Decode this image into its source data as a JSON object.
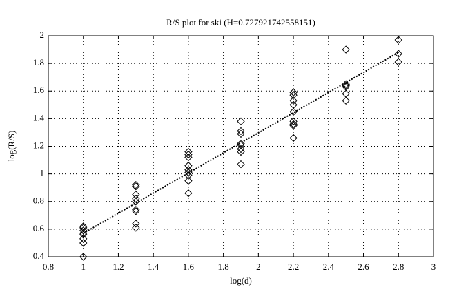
{
  "chart_data": {
    "type": "scatter",
    "title": "R/S plot for ski (H=0.727921742558151)",
    "x_label": "log(d)",
    "y_label": "log(R/S)",
    "xlim": [
      0.8,
      3
    ],
    "xticks": [
      0.8,
      1,
      1.2,
      1.4,
      1.6,
      1.8,
      2,
      2.2,
      2.4,
      2.6,
      2.8,
      3
    ],
    "ylim": [
      0.4,
      2
    ],
    "yticks": [
      0.4,
      0.6,
      0.8,
      1,
      1.2,
      1.4,
      1.6,
      1.8,
      2
    ],
    "grid": true,
    "series": [
      {
        "type": "scatter",
        "marker": "diamond",
        "color": "#000000",
        "x": [
          1,
          1,
          1,
          1,
          1,
          1,
          1,
          1,
          1.3,
          1.3,
          1.3,
          1.3,
          1.3,
          1.3,
          1.3,
          1.3,
          1.3,
          1.6,
          1.6,
          1.6,
          1.6,
          1.6,
          1.6,
          1.6,
          1.6,
          1.6,
          1.9,
          1.9,
          1.9,
          1.9,
          1.9,
          1.9,
          1.9,
          1.9,
          2.2,
          2.2,
          2.2,
          2.2,
          2.2,
          2.2,
          2.2,
          2.2,
          2.2,
          2.5,
          2.5,
          2.5,
          2.5,
          2.5,
          2.5,
          2.8,
          2.8,
          2.8
        ],
        "values": [
          0.62,
          0.61,
          0.59,
          0.57,
          0.56,
          0.53,
          0.5,
          0.4,
          0.92,
          0.91,
          0.85,
          0.82,
          0.8,
          0.74,
          0.73,
          0.64,
          0.61,
          1.16,
          1.14,
          1.12,
          1.06,
          1.03,
          1.01,
          0.99,
          0.95,
          0.86,
          1.38,
          1.31,
          1.29,
          1.22,
          1.21,
          1.18,
          1.16,
          1.07,
          1.59,
          1.57,
          1.53,
          1.5,
          1.45,
          1.38,
          1.36,
          1.35,
          1.26,
          1.9,
          1.65,
          1.64,
          1.63,
          1.58,
          1.53,
          1.97,
          1.87,
          1.81
        ]
      },
      {
        "type": "line",
        "dash": "dotted",
        "color": "#000000",
        "x": [
          1,
          2.8
        ],
        "values": [
          0.57,
          1.88
        ]
      }
    ]
  }
}
